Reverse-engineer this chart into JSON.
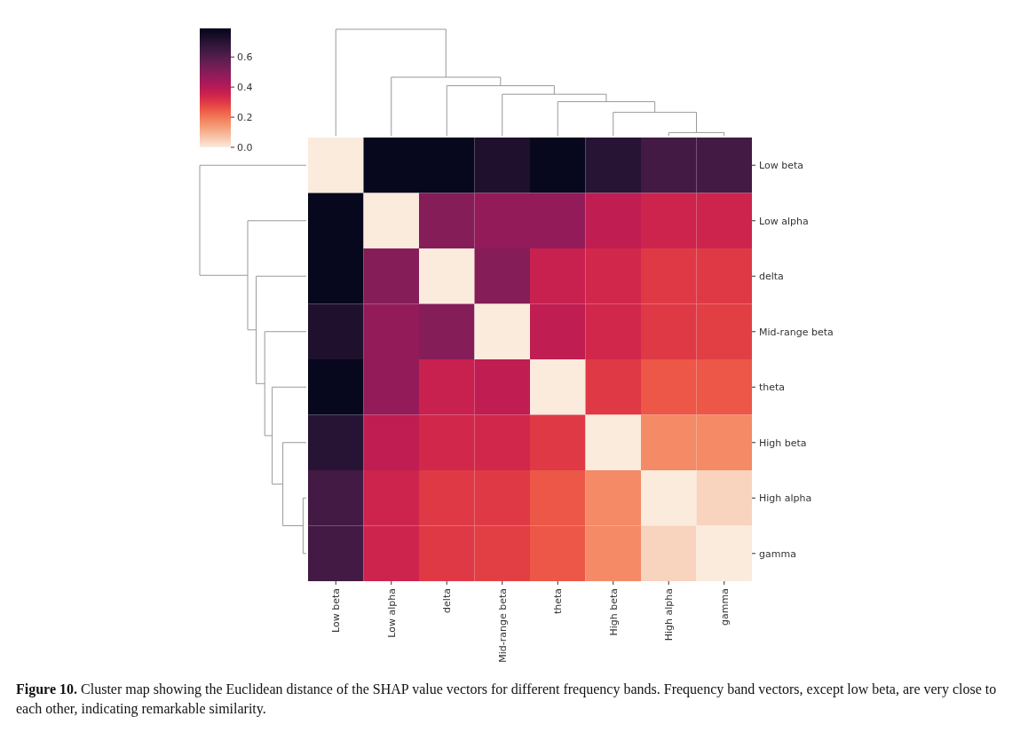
{
  "chart_data": {
    "type": "heatmap",
    "categories": [
      "Low beta",
      "Low alpha",
      "delta",
      "Mid-range beta",
      "theta",
      "High beta",
      "High alpha",
      "gamma"
    ],
    "y_categories": [
      "Low beta",
      "Low alpha",
      "delta",
      "Mid-range beta",
      "theta",
      "High beta",
      "High alpha",
      "gamma"
    ],
    "cells": [
      [
        0,
        0.78,
        0.78,
        0.72,
        0.78,
        0.7,
        0.64,
        0.64
      ],
      [
        0.78,
        0,
        0.5,
        0.47,
        0.47,
        0.38,
        0.35,
        0.35
      ],
      [
        0.78,
        0.5,
        0,
        0.5,
        0.36,
        0.34,
        0.3,
        0.3
      ],
      [
        0.72,
        0.47,
        0.5,
        0,
        0.38,
        0.34,
        0.3,
        0.29
      ],
      [
        0.78,
        0.47,
        0.36,
        0.38,
        0,
        0.3,
        0.25,
        0.25
      ],
      [
        0.7,
        0.38,
        0.34,
        0.34,
        0.3,
        0,
        0.17,
        0.17
      ],
      [
        0.64,
        0.35,
        0.3,
        0.3,
        0.25,
        0.17,
        0,
        0.04
      ],
      [
        0.64,
        0.35,
        0.3,
        0.29,
        0.25,
        0.17,
        0.04,
        0
      ]
    ],
    "clim": [
      0,
      0.79
    ],
    "cticks": [
      {
        "value": 0,
        "label": "0.0"
      },
      {
        "value": 0.2,
        "label": "0.2"
      },
      {
        "value": 0.4,
        "label": "0.4"
      },
      {
        "value": 0.6,
        "label": "0.6"
      }
    ],
    "annotations": [
      "Figure 10. Cluster map showing the Euclidean distance of the SHAP value vectors for different frequency bands. Frequency band vectors, except low beta, are very close to each other, indicating remarkable similarity."
    ]
  }
}
